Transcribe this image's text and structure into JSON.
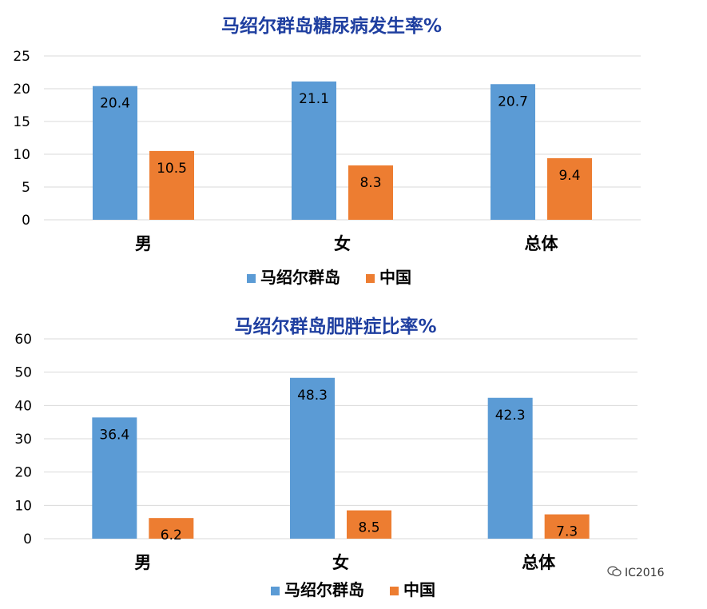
{
  "chart_data": [
    {
      "type": "bar",
      "title": "马绍尔群岛糖尿病发生率%",
      "categories": [
        "男",
        "女",
        "总体"
      ],
      "series": [
        {
          "name": "马绍尔群岛",
          "values": [
            20.4,
            21.1,
            20.7
          ],
          "labels": [
            "20.4",
            "21.1",
            "20.7"
          ],
          "color": "#5B9BD5"
        },
        {
          "name": "中国",
          "values": [
            10.5,
            8.3,
            9.4
          ],
          "labels": [
            "10.5",
            "8.3",
            "9.4"
          ],
          "color": "#ED7D31"
        }
      ],
      "ylim": [
        0,
        25
      ],
      "yticks": [
        0,
        5,
        10,
        15,
        20,
        25
      ],
      "ytick_labels": [
        "0",
        "5",
        "10",
        "15",
        "20",
        "25"
      ],
      "grid": true,
      "legend": "bottom"
    },
    {
      "type": "bar",
      "title": "马绍尔群岛肥胖症比率%",
      "categories": [
        "男",
        "女",
        "总体"
      ],
      "series": [
        {
          "name": "马绍尔群岛",
          "values": [
            36.4,
            48.3,
            42.3
          ],
          "labels": [
            "36.4",
            "48.3",
            "42.3"
          ],
          "color": "#5B9BD5"
        },
        {
          "name": "中国",
          "values": [
            6.2,
            8.5,
            7.3
          ],
          "labels": [
            "6.2",
            "8.5",
            "7.3"
          ],
          "color": "#ED7D31"
        }
      ],
      "ylim": [
        0,
        60
      ],
      "yticks": [
        0,
        10,
        20,
        30,
        40,
        50,
        60
      ],
      "ytick_labels": [
        "0",
        "10",
        "20",
        "30",
        "40",
        "50",
        "60"
      ],
      "grid": true,
      "legend": "bottom"
    }
  ],
  "watermark": {
    "icon": "wechat-icon",
    "text": "IC2016"
  },
  "colors": {
    "title": "#1F3FA0",
    "grid": "#D9D9D9",
    "axis_text": "#000000"
  }
}
